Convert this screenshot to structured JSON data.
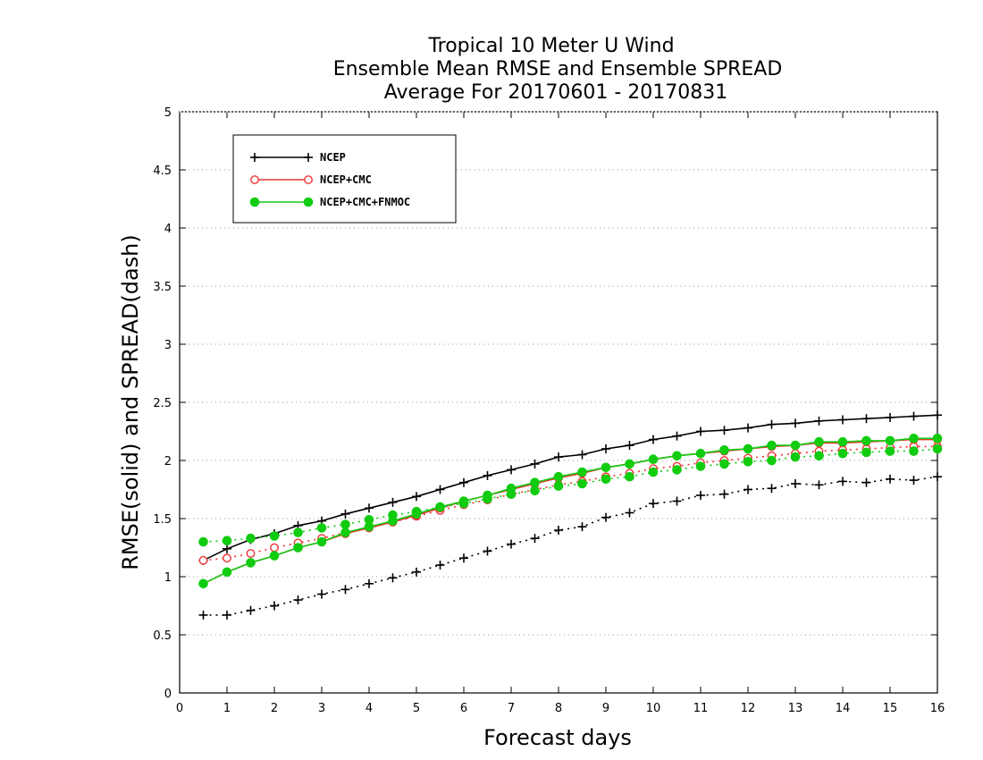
{
  "chart_data": {
    "type": "line",
    "title_lines": [
      "Tropical 10 Meter U Wind",
      "Ensemble Mean RMSE and Ensemble SPREAD",
      "Average For 20170601 - 20170831"
    ],
    "xlabel": "Forecast days",
    "ylabel": "RMSE(solid) and SPREAD(dash)",
    "xlim": [
      0,
      16
    ],
    "ylim": [
      0,
      5
    ],
    "x_ticks": [
      "0",
      "1",
      "2",
      "3",
      "4",
      "5",
      "6",
      "7",
      "8",
      "9",
      "10",
      "11",
      "12",
      "13",
      "14",
      "15",
      "16"
    ],
    "y_ticks": [
      "0",
      "0.5",
      "1",
      "1.5",
      "2",
      "2.5",
      "3",
      "3.5",
      "4",
      "4.5",
      "5"
    ],
    "grid": "horizontal-dotted",
    "legend_position": "top-left",
    "x": [
      0.5,
      1,
      1.5,
      2,
      2.5,
      3,
      3.5,
      4,
      4.5,
      5,
      5.5,
      6,
      6.5,
      7,
      7.5,
      8,
      8.5,
      9,
      9.5,
      10,
      10.5,
      11,
      11.5,
      12,
      12.5,
      13,
      13.5,
      14,
      14.5,
      15,
      15.5,
      16
    ],
    "series": [
      {
        "name": "NCEP",
        "color": "#000000",
        "marker": "plus",
        "rmse": [
          1.14,
          1.24,
          1.32,
          1.37,
          1.44,
          1.48,
          1.54,
          1.59,
          1.64,
          1.69,
          1.75,
          1.81,
          1.87,
          1.92,
          1.97,
          2.03,
          2.05,
          2.1,
          2.13,
          2.18,
          2.21,
          2.25,
          2.26,
          2.28,
          2.31,
          2.32,
          2.34,
          2.35,
          2.36,
          2.37,
          2.38,
          2.39
        ],
        "spread": [
          0.67,
          0.67,
          0.71,
          0.75,
          0.8,
          0.85,
          0.89,
          0.94,
          0.99,
          1.04,
          1.1,
          1.16,
          1.22,
          1.28,
          1.33,
          1.4,
          1.43,
          1.51,
          1.55,
          1.63,
          1.65,
          1.7,
          1.71,
          1.75,
          1.76,
          1.8,
          1.79,
          1.82,
          1.81,
          1.84,
          1.83,
          1.86
        ]
      },
      {
        "name": "NCEP+CMC",
        "color": "#ee3333",
        "marker": "open-circle",
        "rmse": [
          0.94,
          1.04,
          1.12,
          1.18,
          1.25,
          1.3,
          1.37,
          1.42,
          1.47,
          1.53,
          1.59,
          1.65,
          1.7,
          1.75,
          1.8,
          1.85,
          1.89,
          1.94,
          1.97,
          2.01,
          2.04,
          2.06,
          2.08,
          2.1,
          2.12,
          2.13,
          2.15,
          2.15,
          2.16,
          2.17,
          2.18,
          2.18
        ],
        "spread": [
          1.14,
          1.16,
          1.2,
          1.25,
          1.29,
          1.33,
          1.38,
          1.42,
          1.47,
          1.52,
          1.57,
          1.62,
          1.66,
          1.71,
          1.75,
          1.79,
          1.82,
          1.86,
          1.89,
          1.93,
          1.95,
          1.98,
          2.0,
          2.02,
          2.04,
          2.06,
          2.08,
          2.09,
          2.1,
          2.11,
          2.12,
          2.12
        ]
      },
      {
        "name": "NCEP+CMC+FNMOC",
        "color": "#11cc11",
        "marker": "filled-circle",
        "rmse": [
          0.94,
          1.04,
          1.12,
          1.18,
          1.25,
          1.3,
          1.38,
          1.43,
          1.48,
          1.54,
          1.6,
          1.65,
          1.7,
          1.76,
          1.81,
          1.86,
          1.9,
          1.94,
          1.97,
          2.01,
          2.04,
          2.06,
          2.09,
          2.1,
          2.13,
          2.13,
          2.16,
          2.16,
          2.17,
          2.17,
          2.19,
          2.19
        ],
        "spread": [
          1.3,
          1.31,
          1.33,
          1.35,
          1.38,
          1.42,
          1.45,
          1.49,
          1.53,
          1.56,
          1.6,
          1.63,
          1.67,
          1.71,
          1.74,
          1.78,
          1.8,
          1.84,
          1.86,
          1.9,
          1.92,
          1.95,
          1.97,
          1.99,
          2.0,
          2.03,
          2.04,
          2.06,
          2.07,
          2.08,
          2.08,
          2.1
        ]
      }
    ]
  }
}
